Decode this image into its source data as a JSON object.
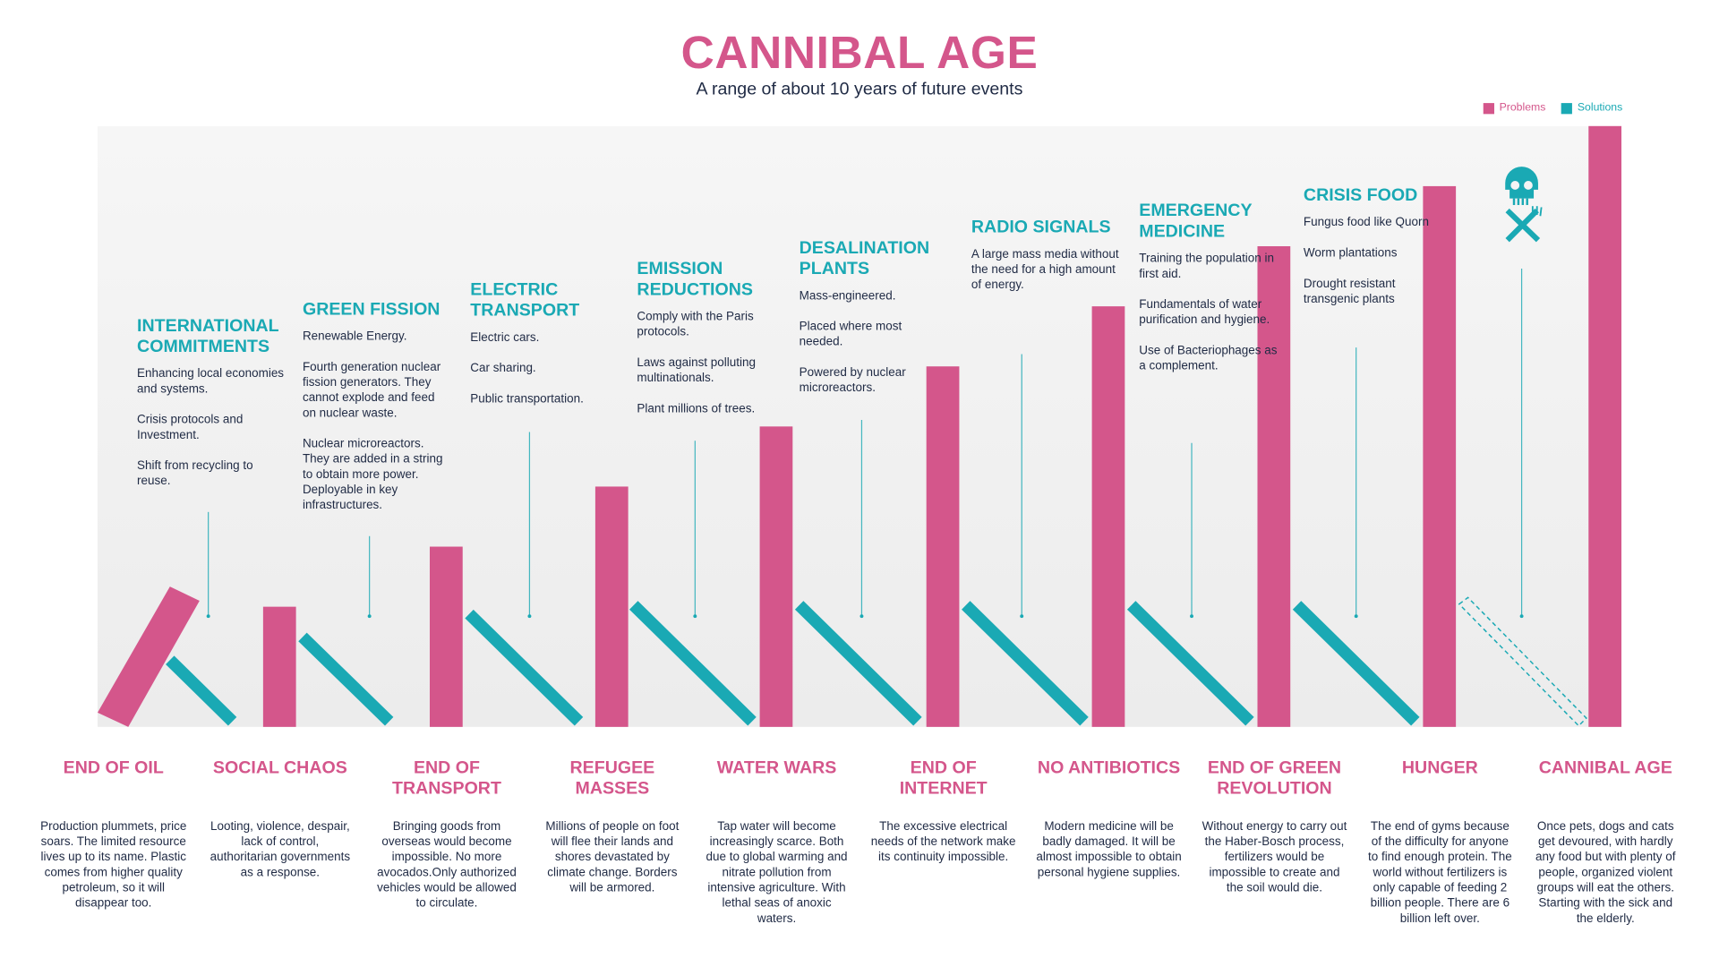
{
  "header": {
    "title": "CANNIBAL AGE",
    "subtitle": "A range of about 10 years of future events"
  },
  "legend": [
    {
      "label": "Problems",
      "color": "#d4568b"
    },
    {
      "label": "Solutions",
      "color": "#1aa9b4"
    }
  ],
  "colors": {
    "problem": "#d4568b",
    "solution": "#1aa9b4",
    "text": "#1f2a44"
  },
  "solutions": [
    {
      "title": "INTERNATIONAL COMMITMENTS",
      "items": [
        "Enhancing local economies and systems.",
        "Crisis protocols and Investment.",
        "Shift from recycling to reuse."
      ]
    },
    {
      "title": "GREEN FISSION",
      "items": [
        "Renewable Energy.",
        "Fourth generation nuclear fission generators. They cannot explode and feed on nuclear waste.",
        "Nuclear microreactors. They are added in a string to obtain more power. Deployable in key infrastructures."
      ]
    },
    {
      "title": "ELECTRIC TRANSPORT",
      "items": [
        "Electric cars.",
        "Car sharing.",
        "Public transportation."
      ]
    },
    {
      "title": "EMISSION REDUCTIONS",
      "items": [
        "Comply with the Paris protocols.",
        "Laws against polluting multinationals.",
        "Plant millions of trees."
      ]
    },
    {
      "title": "DESALINATION PLANTS",
      "items": [
        "Mass-engineered.",
        "Placed where most needed.",
        "Powered by nuclear microreactors."
      ]
    },
    {
      "title": "RADIO SIGNALS",
      "items": [
        "A large mass media without the need for a high amount of energy."
      ]
    },
    {
      "title": "EMERGENCY MEDICINE",
      "items": [
        "Training the population in first aid.",
        "Fundamentals of water purification and hygiene.",
        "Use of Bacteriophages as a complement."
      ]
    },
    {
      "title": "CRISIS FOOD",
      "items": [
        "Fungus food like Quorn",
        "Worm plantations",
        "Drought resistant transgenic plants"
      ]
    }
  ],
  "final_icon": "skull-fork-knife-icon",
  "problems": [
    {
      "title": "END OF OIL",
      "level": 1,
      "text": "Production plummets, price soars. The limited resource lives up to its name. Plastic comes from higher quality petroleum, so it will disappear too."
    },
    {
      "title": "SOCIAL CHAOS",
      "level": 2,
      "text": "Looting, violence, despair, lack of control, authoritarian governments as a response."
    },
    {
      "title": "END OF TRANSPORT",
      "level": 3,
      "text": "Bringing goods from overseas would become impossible. No more avocados.Only authorized vehicles would be allowed to circulate."
    },
    {
      "title": "REFUGEE MASSES",
      "level": 4,
      "text": "Millions of people on foot will flee their lands and shores devastated by climate change. Borders will be armored."
    },
    {
      "title": "WATER WARS",
      "level": 5,
      "text": "Tap water will become increasingly scarce. Both due to global warming and nitrate pollution from intensive agriculture. With lethal seas of anoxic waters."
    },
    {
      "title": "END OF INTERNET",
      "level": 6,
      "text": "The excessive electrical needs of the network make its continuity impossible."
    },
    {
      "title": "NO ANTIBIOTICS",
      "level": 7,
      "text": "Modern medicine will be badly damaged. It will be almost impossible to obtain personal hygiene supplies."
    },
    {
      "title": "END OF GREEN REVOLUTION",
      "level": 8,
      "text": "Without energy to carry out the Haber-Bosch process, fertilizers would be impossible to create and the soil would die."
    },
    {
      "title": "HUNGER",
      "level": 9,
      "text": "The end of gyms because of the difficulty for anyone to find enough protein. The world without fertilizers is only capable of feeding 2 billion people. There are 6 billion left over."
    },
    {
      "title": "CANNIBAL AGE",
      "level": 10,
      "text": "Once pets, dogs and cats get devoured, with hardly any food but with plenty of people, organized violent groups will eat the others. Starting with the sick and the elderly."
    }
  ]
}
